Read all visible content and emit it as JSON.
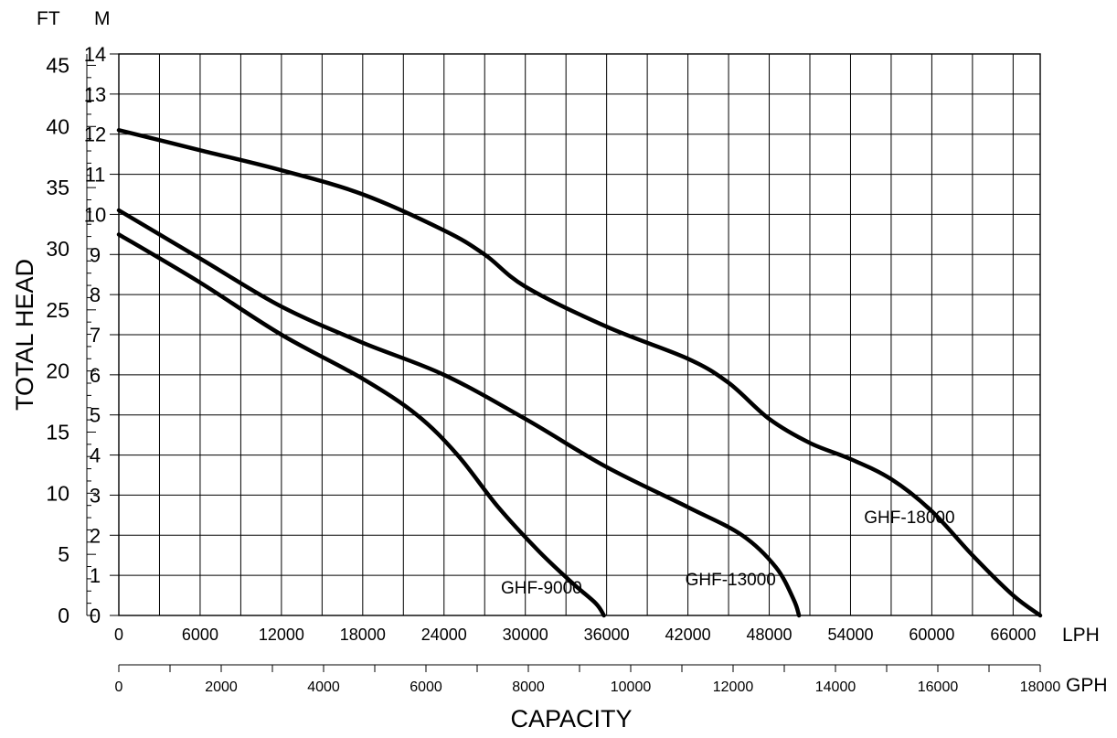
{
  "chart_data": {
    "type": "line",
    "title": "",
    "ylabel": "TOTAL HEAD",
    "xlabel": "CAPACITY",
    "y_units": {
      "left": "FT",
      "right": "M"
    },
    "x_units": {
      "primary": "LPH",
      "secondary": "GPH"
    },
    "y_range_m": [
      0,
      14
    ],
    "y_ticks_m": [
      0,
      1,
      2,
      3,
      4,
      5,
      6,
      7,
      8,
      9,
      10,
      11,
      12,
      13,
      14
    ],
    "y_ticks_ft": [
      0,
      5,
      10,
      15,
      20,
      25,
      30,
      35,
      40,
      45
    ],
    "x_range_lph": [
      0,
      68000
    ],
    "x_gridlines_lph": [
      0,
      3000,
      6000,
      9000,
      12000,
      15000,
      18000,
      21000,
      24000,
      27000,
      30000,
      33000,
      36000,
      39000,
      42000,
      45000,
      48000,
      51000,
      54000,
      57000,
      60000,
      63000,
      66000,
      68000
    ],
    "x_ticks_lph": [
      "0",
      "6000",
      "12000",
      "18000",
      "24000",
      "30000",
      "36000",
      "42000",
      "48000",
      "54000",
      "60000",
      "66000"
    ],
    "x_ticks_gph": [
      "0",
      "2000",
      "4000",
      "6000",
      "8000",
      "10000",
      "12000",
      "14000",
      "16000",
      "18000"
    ],
    "grid": true,
    "series": [
      {
        "name": "GHF-9000",
        "x_lph": [
          0,
          6000,
          12000,
          18000,
          22000,
          25000,
          28000,
          31000,
          33500,
          35200,
          35800
        ],
        "y_m": [
          9.5,
          8.3,
          7.0,
          5.9,
          5.0,
          4.0,
          2.7,
          1.6,
          0.8,
          0.3,
          0.0
        ]
      },
      {
        "name": "GHF-13000",
        "x_lph": [
          0,
          6000,
          12000,
          18000,
          24000,
          30000,
          36000,
          42000,
          46000,
          48500,
          49800,
          50200
        ],
        "y_m": [
          10.1,
          8.9,
          7.7,
          6.8,
          6.0,
          4.9,
          3.7,
          2.7,
          2.0,
          1.2,
          0.4,
          0.0
        ]
      },
      {
        "name": "GHF-18000",
        "x_lph": [
          0,
          6000,
          12000,
          18000,
          24000,
          27000,
          30000,
          36000,
          42000,
          45000,
          48000,
          51000,
          54000,
          57000,
          60000,
          63000,
          66000,
          68000
        ],
        "y_m": [
          12.1,
          11.6,
          11.1,
          10.5,
          9.6,
          9.0,
          8.2,
          7.2,
          6.4,
          5.8,
          4.9,
          4.3,
          3.9,
          3.4,
          2.6,
          1.5,
          0.5,
          0.0
        ]
      }
    ]
  }
}
